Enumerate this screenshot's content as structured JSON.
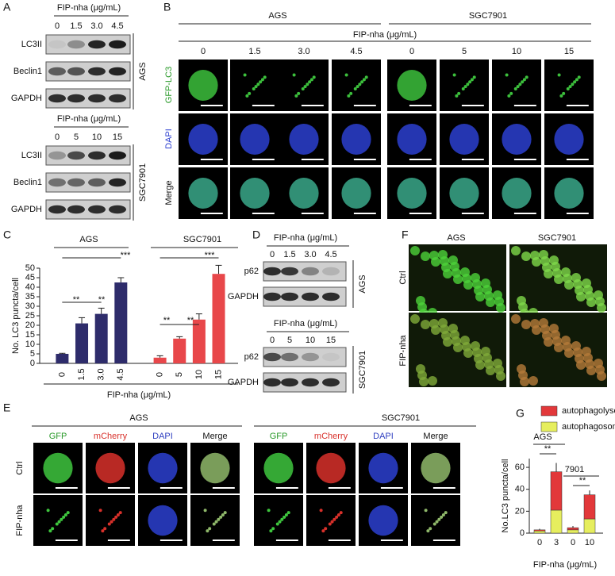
{
  "panel_letters": [
    "A",
    "B",
    "C",
    "D",
    "E",
    "F",
    "G"
  ],
  "panel_a": {
    "groups": [
      {
        "header": "FIP-nha (μg/mL)",
        "doses": [
          "0",
          "1.5",
          "3.0",
          "4.5"
        ],
        "rows": [
          "LC3II",
          "Beclin1",
          "GAPDH"
        ],
        "cell": "AGS"
      },
      {
        "header": "FIP-nha (μg/mL)",
        "doses": [
          "0",
          "5",
          "10",
          "15"
        ],
        "rows": [
          "LC3II",
          "Beclin1",
          "GAPDH"
        ],
        "cell": "SGC7901"
      }
    ]
  },
  "panel_b": {
    "cells": [
      "AGS",
      "SGC7901"
    ],
    "header": "FIP-nha (μg/mL)",
    "doses": [
      "0",
      "1.5",
      "3.0",
      "4.5",
      "0",
      "5",
      "10",
      "15"
    ],
    "rows": [
      "GFP-LC3",
      "DAPI",
      "Merge"
    ]
  },
  "panel_d": {
    "groups": [
      {
        "header": "FIP-nha (μg/mL)",
        "doses": [
          "0",
          "1.5",
          "3.0",
          "4.5"
        ],
        "rows": [
          "p62",
          "GAPDH"
        ],
        "cell": "AGS"
      },
      {
        "header": "FIP-nha (μg/mL)",
        "doses": [
          "0",
          "5",
          "10",
          "15"
        ],
        "rows": [
          "p62",
          "GAPDH"
        ],
        "cell": "SGC7901"
      }
    ]
  },
  "panel_e": {
    "cells": [
      "AGS",
      "SGC7901"
    ],
    "channels": [
      "GFP",
      "mCherry",
      "DAPI",
      "Merge",
      "GFP",
      "mCherry",
      "DAPI",
      "Merge"
    ],
    "rows": [
      "Ctrl",
      "FIP-nha"
    ]
  },
  "panel_f": {
    "cols": [
      "AGS",
      "SGC7901"
    ],
    "rows": [
      "Ctrl",
      "FIP-nha"
    ]
  },
  "chart_data": [
    {
      "type": "bar",
      "y_label": "No. LC3 puncta/cell",
      "x_label": "FIP-nha (μg/mL)",
      "groups": [
        "AGS",
        "SGC7901"
      ],
      "categories": [
        "0",
        "1.5",
        "3.0",
        "4.5",
        "0",
        "5",
        "10",
        "15"
      ],
      "values": [
        5,
        21,
        26,
        42.5,
        3,
        13,
        23,
        47
      ],
      "errors": [
        0.3,
        3,
        3,
        2.5,
        1,
        1,
        3,
        4.5
      ],
      "colors": [
        "#2e2c6b",
        "#2e2c6b",
        "#2e2c6b",
        "#2e2c6b",
        "#e8474a",
        "#e8474a",
        "#e8474a",
        "#e8474a"
      ],
      "ylim": [
        0,
        50
      ],
      "yticks": [
        0,
        5,
        10,
        15,
        20,
        25,
        30,
        35,
        40,
        45,
        50
      ],
      "annotations": [
        "**",
        "**",
        "***",
        "**",
        "**",
        "***"
      ]
    },
    {
      "type": "stacked_bar",
      "y_label": "No.LC3 puncta/cell",
      "x_label": "FIP-nha (μg/mL)",
      "categories": [
        "0",
        "3",
        "0",
        "10"
      ],
      "series": [
        {
          "name": "autophagosome",
          "color": "#e6ee5e",
          "values": [
            2,
            21,
            3,
            13
          ]
        },
        {
          "name": "autophagolysosome",
          "color": "#e2383a",
          "values": [
            1,
            35,
            2,
            22
          ]
        }
      ],
      "errors": [
        1,
        8,
        1.5,
        4
      ],
      "ylim": [
        0,
        68
      ],
      "yticks": [
        0,
        20,
        40,
        60
      ],
      "annotations": [
        "AGS",
        "**",
        "7901",
        "**"
      ]
    }
  ]
}
